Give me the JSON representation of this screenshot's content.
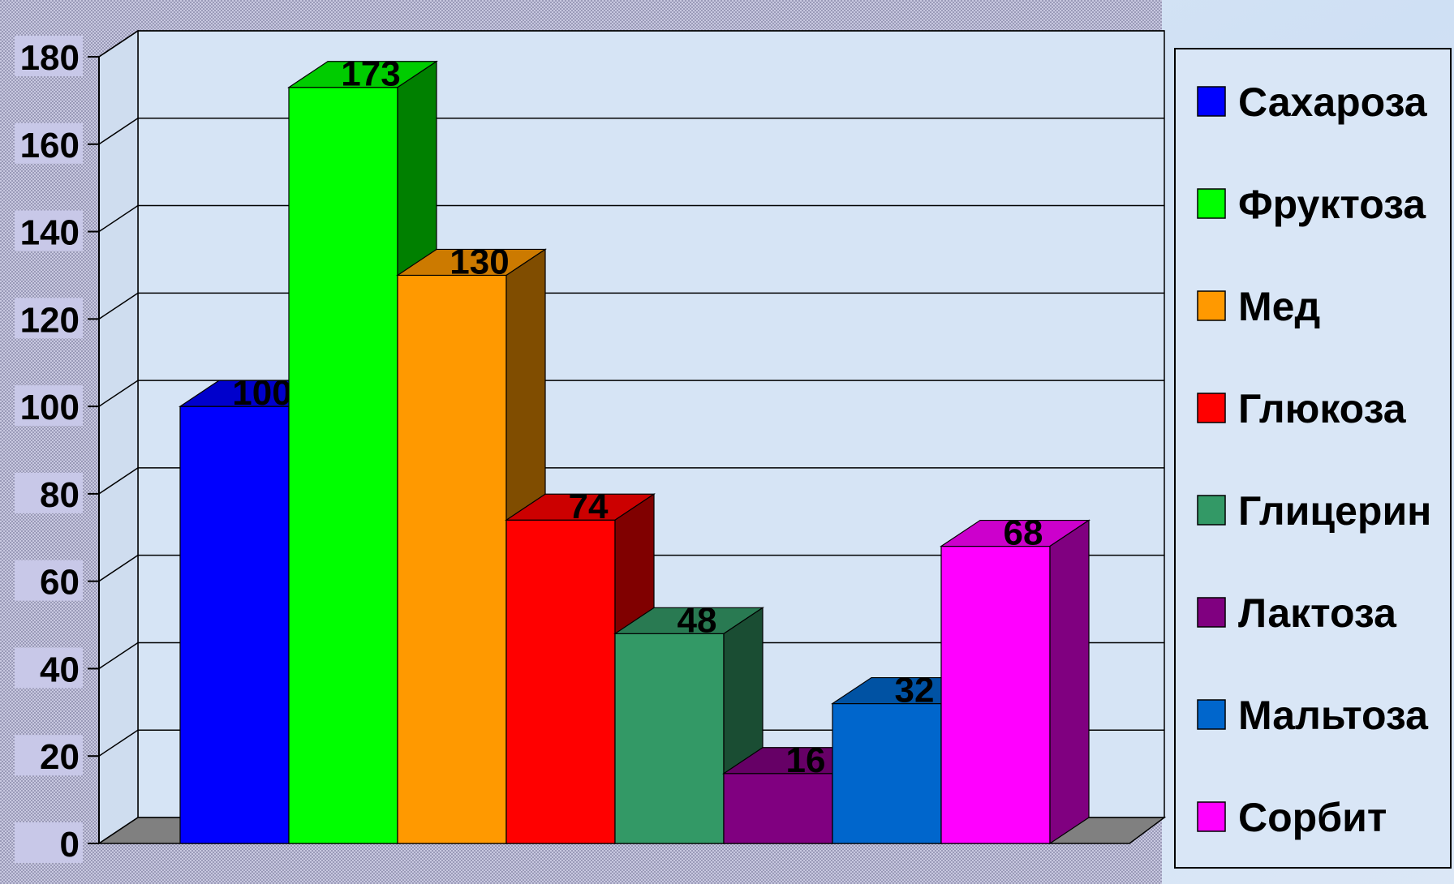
{
  "chart_data": {
    "type": "bar",
    "title": "",
    "xlabel": "",
    "ylabel": "",
    "ylim": [
      0,
      180
    ],
    "yticks": [
      0,
      20,
      40,
      60,
      80,
      100,
      120,
      140,
      160,
      180
    ],
    "grid": true,
    "style": "3d-column",
    "legend_position": "right",
    "series": [
      {
        "name": "Сахароза",
        "value": 100,
        "color": "#0000ff"
      },
      {
        "name": "Фруктоза",
        "value": 173,
        "color": "#00ff00"
      },
      {
        "name": "Мед",
        "value": 130,
        "color": "#ff9900"
      },
      {
        "name": "Глюкоза",
        "value": 74,
        "color": "#ff0000"
      },
      {
        "name": "Глицерин",
        "value": 48,
        "color": "#339966"
      },
      {
        "name": "Лактоза",
        "value": 16,
        "color": "#800080"
      },
      {
        "name": "Мальтоза",
        "value": 32,
        "color": "#0066cc"
      },
      {
        "name": "Сорбит",
        "value": 68,
        "color": "#ff00ff"
      }
    ]
  }
}
